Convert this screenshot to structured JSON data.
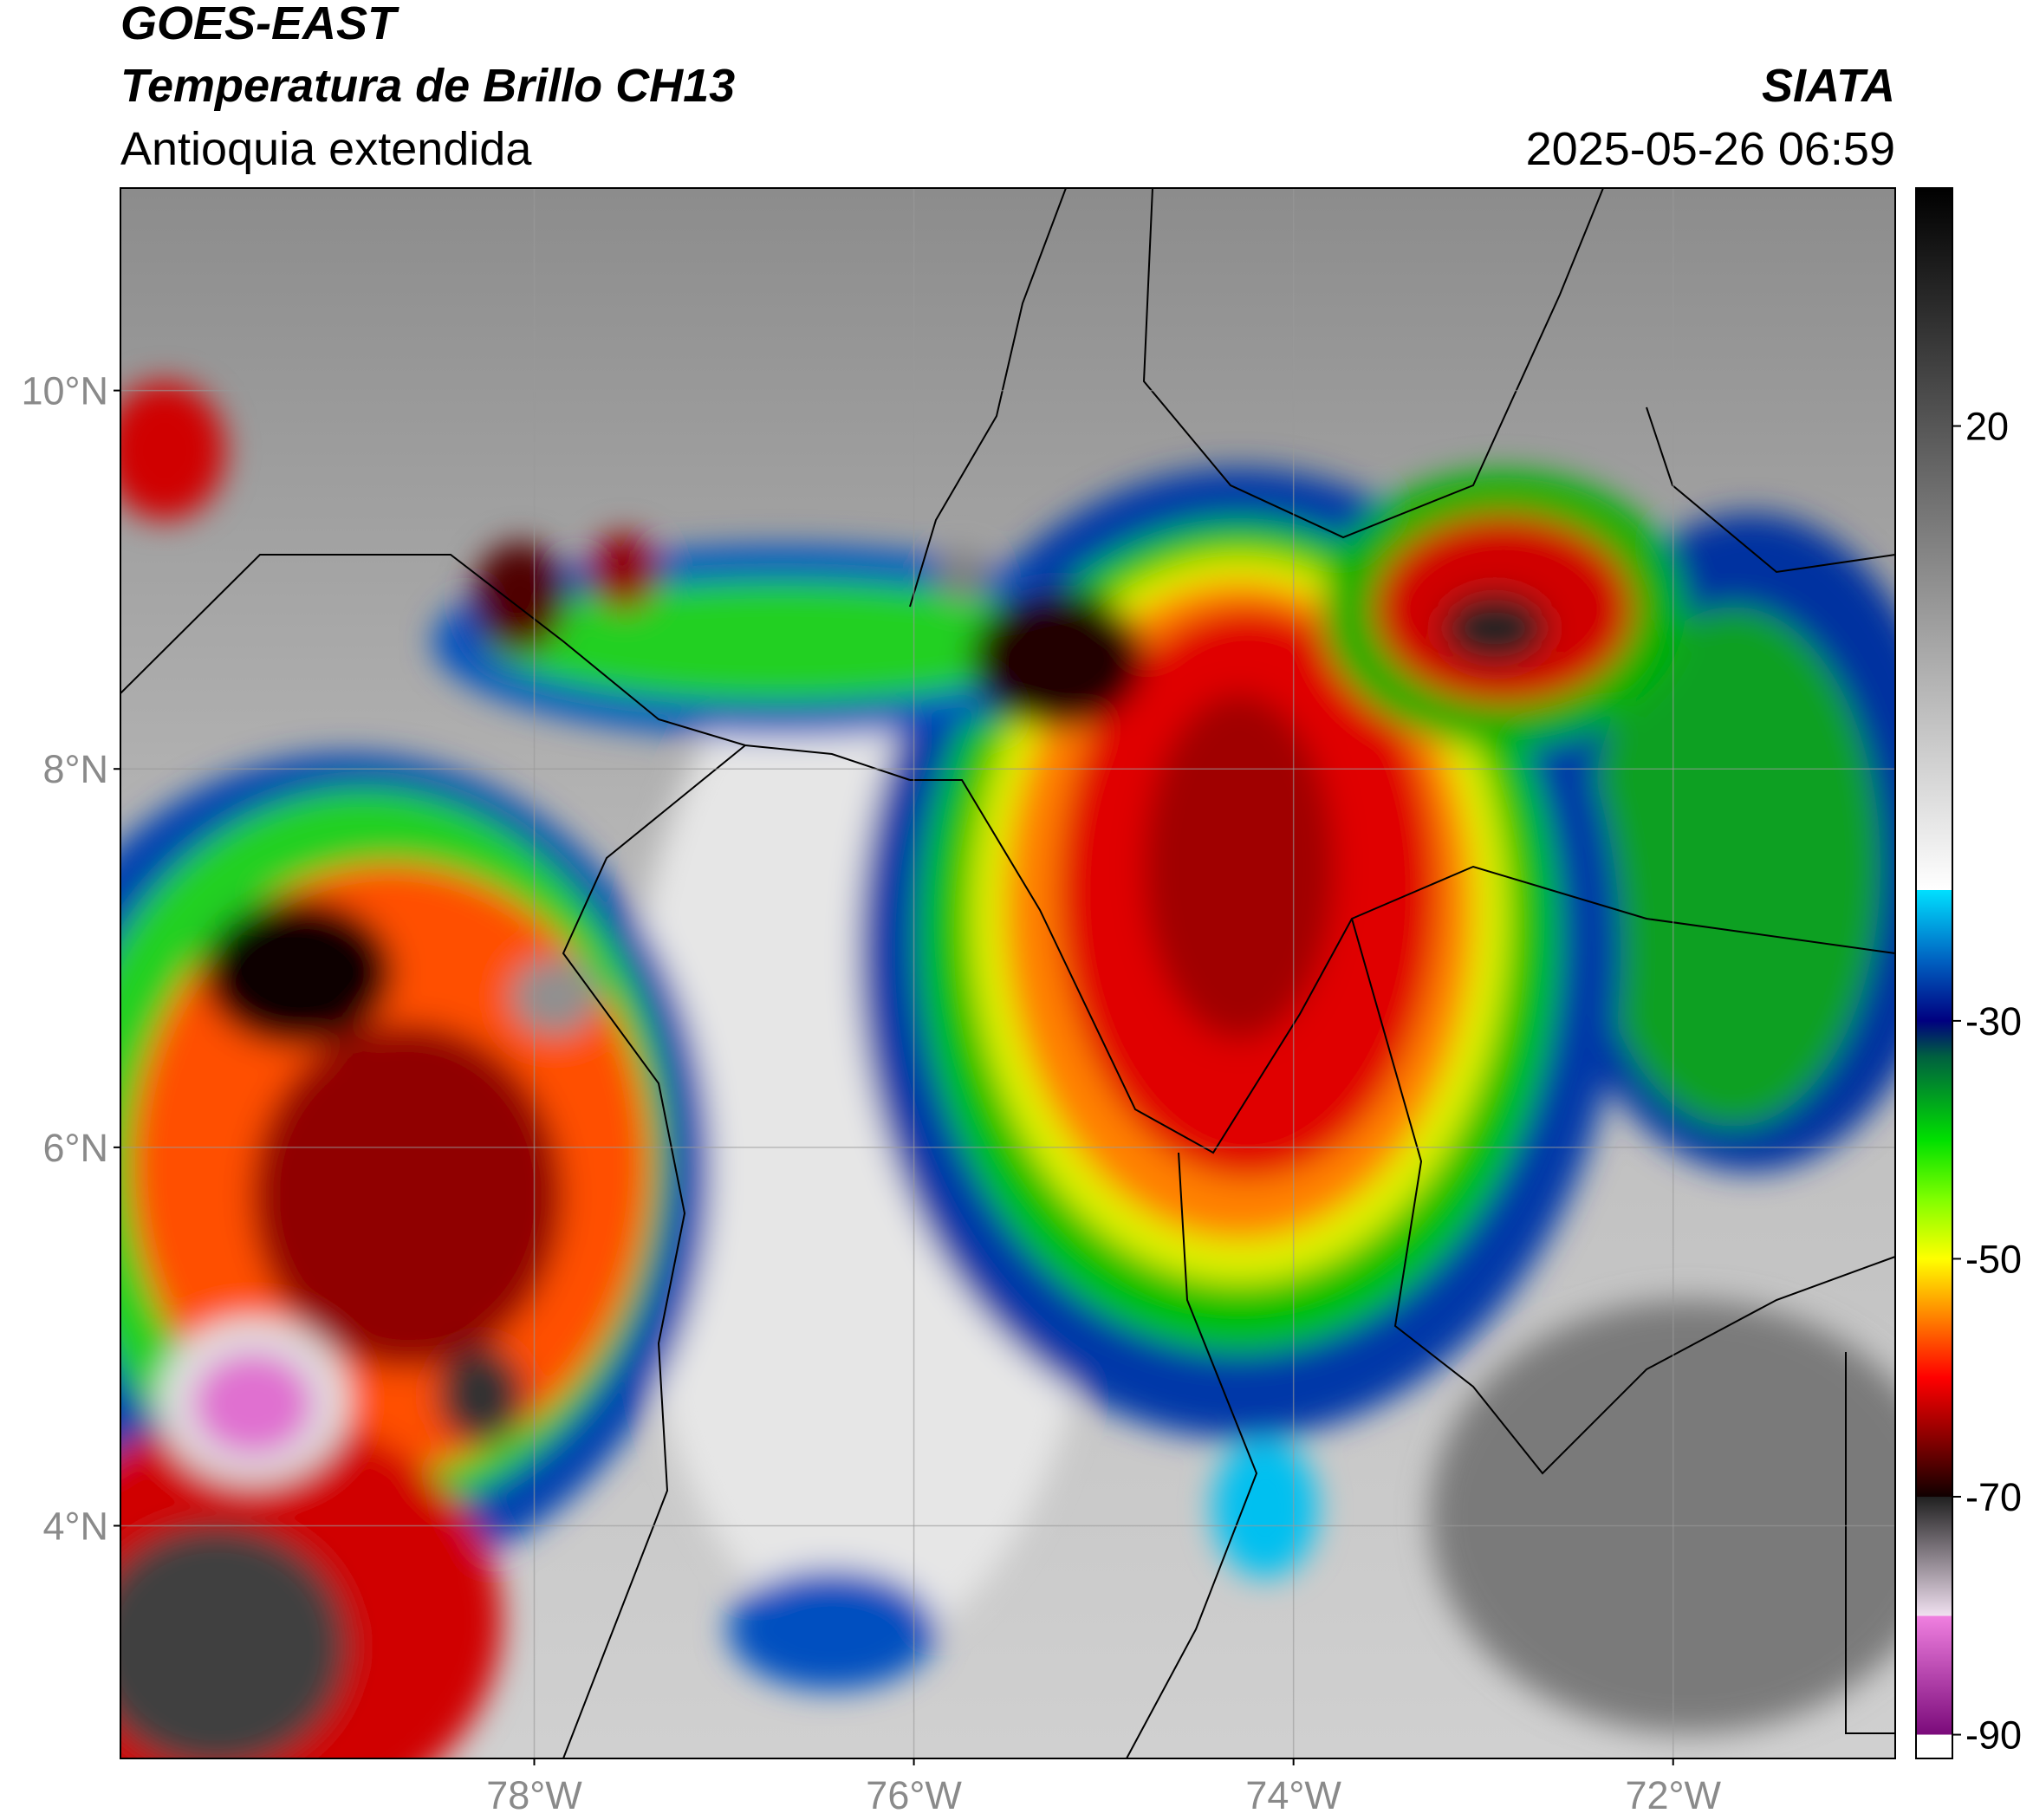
{
  "header": {
    "satellite": "GOES-EAST",
    "product": "Temperatura de Brillo CH13",
    "region": "Antioquia extendida",
    "agency": "SIATA",
    "datetime": "2025-05-26 06:59"
  },
  "chart_data": {
    "type": "map",
    "xlim": [
      -80.18,
      -70.83
    ],
    "ylim": [
      2.77,
      11.07
    ],
    "xticks": [
      {
        "value": -78,
        "label": "78°W"
      },
      {
        "value": -76,
        "label": "76°W"
      },
      {
        "value": -74,
        "label": "74°W"
      },
      {
        "value": -72,
        "label": "72°W"
      }
    ],
    "yticks": [
      {
        "value": 10,
        "label": "10°N"
      },
      {
        "value": 8,
        "label": "8°N"
      },
      {
        "value": 6,
        "label": "6°N"
      },
      {
        "value": 4,
        "label": "4°N"
      }
    ],
    "grid": true,
    "colorbar": {
      "lim": [
        -92,
        40
      ],
      "ticks": [
        20,
        -30,
        -50,
        -70,
        -90
      ],
      "stops": [
        {
          "value": -92,
          "color": "#ffffff"
        },
        {
          "value": -90,
          "color": "#ffffff"
        },
        {
          "value": -90,
          "color": "#7a0a7a"
        },
        {
          "value": -80,
          "color": "#f080e0"
        },
        {
          "value": -80,
          "color": "#f0e0f0"
        },
        {
          "value": -70,
          "color": "#202020"
        },
        {
          "value": -70,
          "color": "#100000"
        },
        {
          "value": -65,
          "color": "#8b0000"
        },
        {
          "value": -60,
          "color": "#ff0000"
        },
        {
          "value": -55,
          "color": "#ff8000"
        },
        {
          "value": -50,
          "color": "#ffff00"
        },
        {
          "value": -45,
          "color": "#80ff00"
        },
        {
          "value": -40,
          "color": "#00e000"
        },
        {
          "value": -33,
          "color": "#006040"
        },
        {
          "value": -30,
          "color": "#000080"
        },
        {
          "value": -25,
          "color": "#0060c0"
        },
        {
          "value": -19,
          "color": "#00e0ff"
        },
        {
          "value": -19,
          "color": "#ffffff"
        },
        {
          "value": 40,
          "color": "#000000"
        }
      ]
    }
  }
}
